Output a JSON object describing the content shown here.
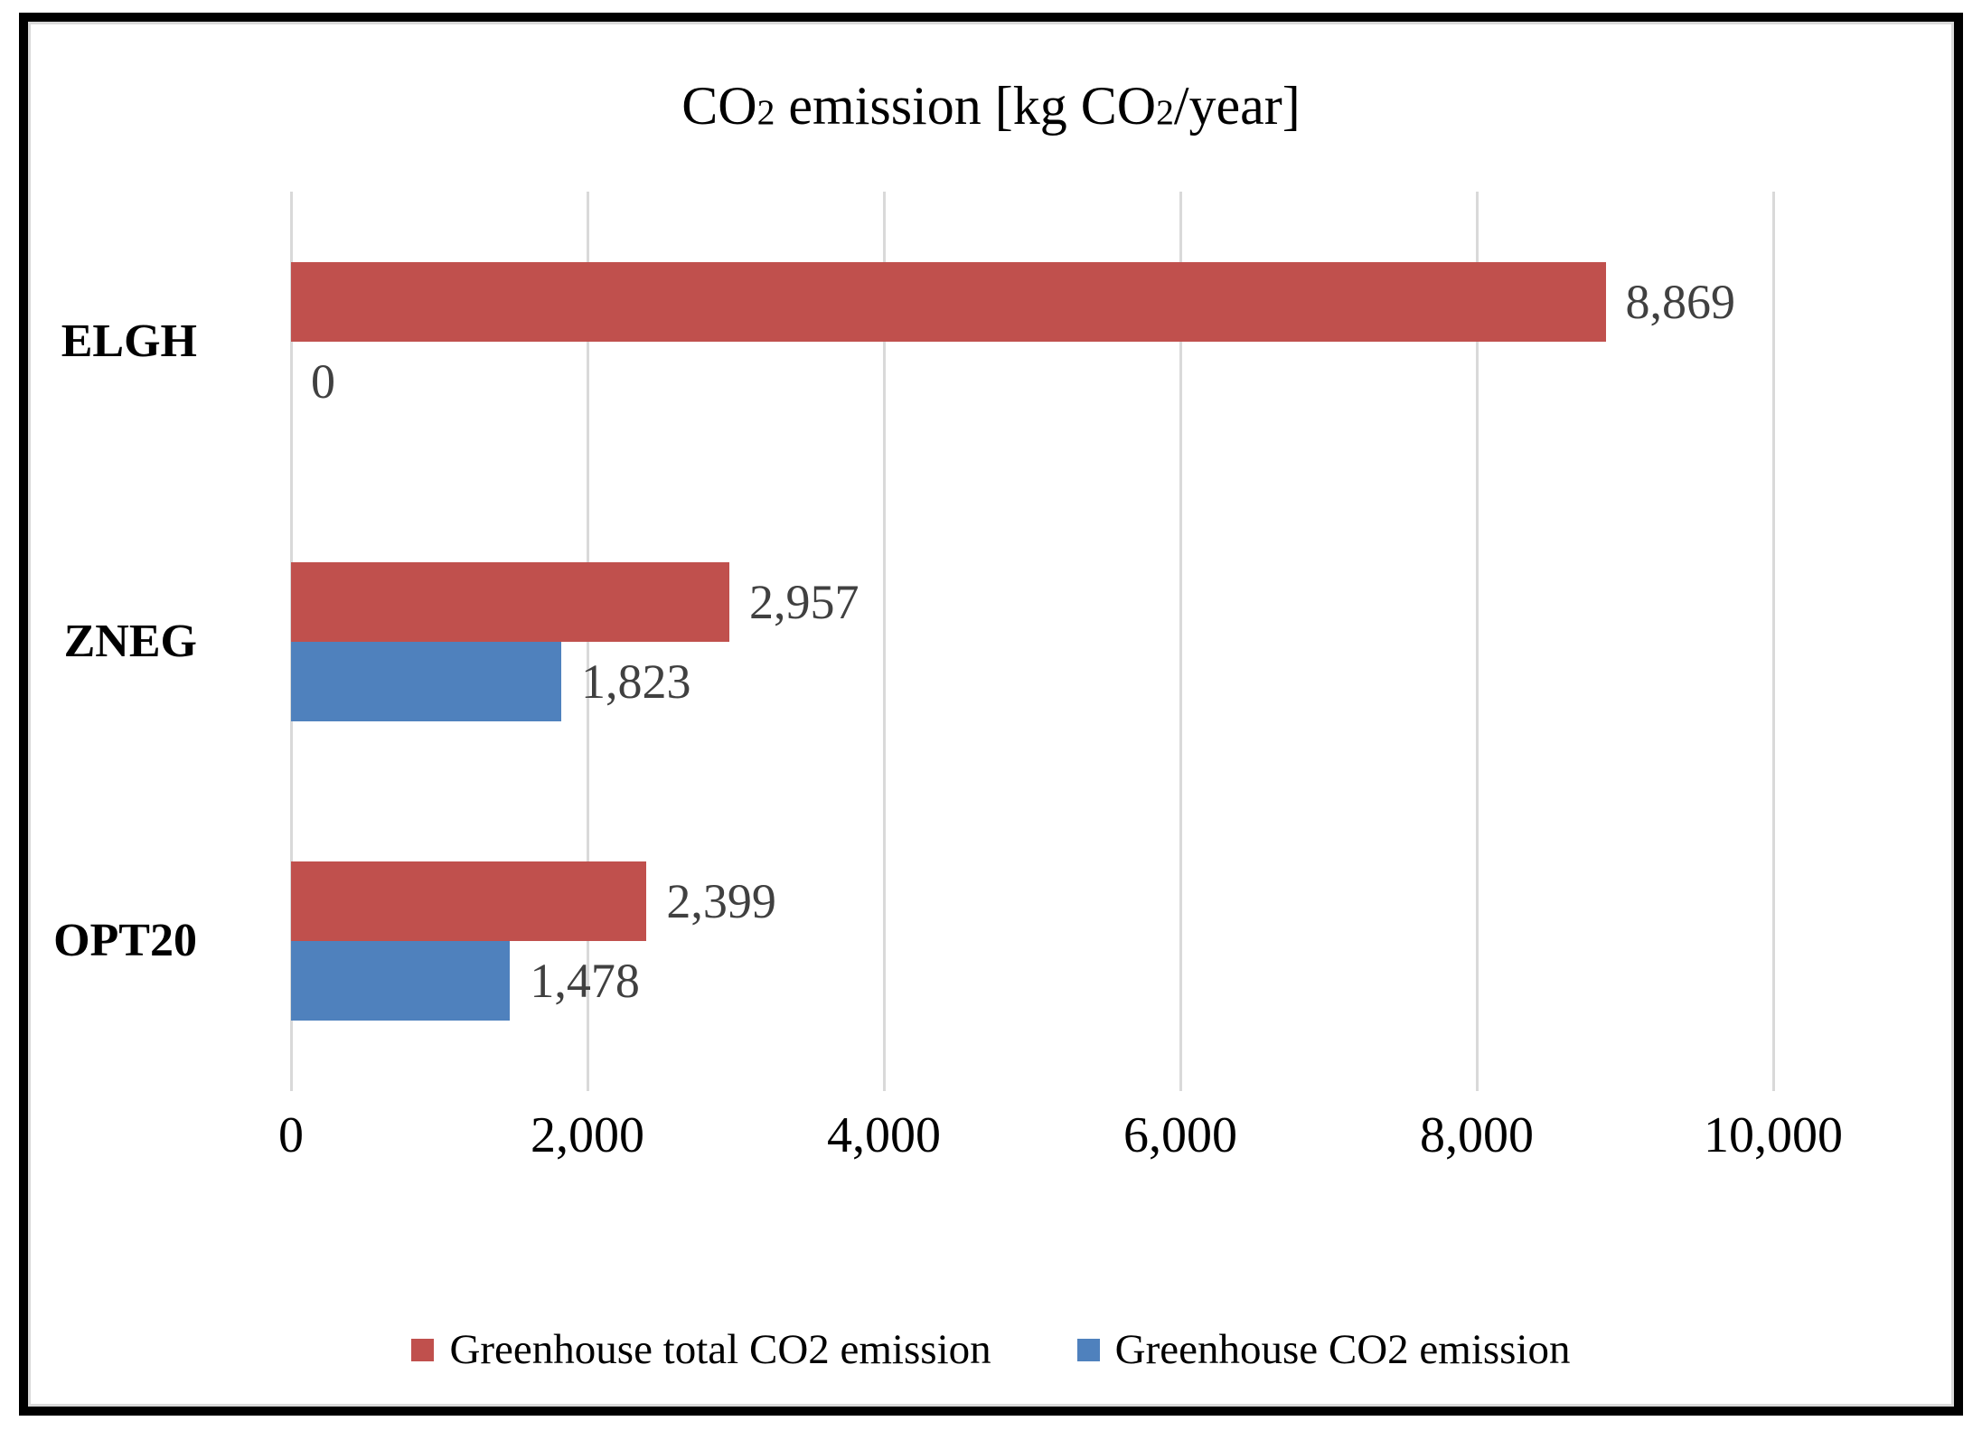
{
  "chart_data": {
    "type": "bar",
    "orientation": "horizontal",
    "title_plain": "CO2 emission [kg CO2/year]",
    "title_parts": [
      {
        "text": "CO",
        "sub": false
      },
      {
        "text": "2",
        "sub": true
      },
      {
        "text": " emission [kg CO",
        "sub": false
      },
      {
        "text": "2",
        "sub": true
      },
      {
        "text": "/year]",
        "sub": false
      }
    ],
    "categories": [
      "ELGH",
      "ZNEG",
      "OPT20"
    ],
    "series": [
      {
        "name": "Greenhouse total CO2 emission",
        "key": "total-co2",
        "color": "#c0504d",
        "values": [
          8869,
          2957,
          2399
        ],
        "value_labels": [
          "8,869",
          "2,957",
          "2,399"
        ]
      },
      {
        "name": "Greenhouse CO2 emission",
        "key": "co2",
        "color": "#4f81bd",
        "values": [
          0,
          1823,
          1478
        ],
        "value_labels": [
          "0",
          "1,823",
          "1,478"
        ]
      }
    ],
    "xlim": [
      0,
      10000
    ],
    "x_ticks": [
      {
        "value": 0,
        "label": "0"
      },
      {
        "value": 2000,
        "label": "2,000"
      },
      {
        "value": 4000,
        "label": "4,000"
      },
      {
        "value": 6000,
        "label": "6,000"
      },
      {
        "value": 8000,
        "label": "8,000"
      },
      {
        "value": 10000,
        "label": "10,000"
      }
    ],
    "grid": true,
    "legend_position": "bottom",
    "colors": {
      "gridline": "#d9d9d9",
      "data_label": "#404040",
      "text": "#000000",
      "background": "#ffffff",
      "frame_border": "#000000",
      "chart_border": "#d9d9d9"
    }
  }
}
